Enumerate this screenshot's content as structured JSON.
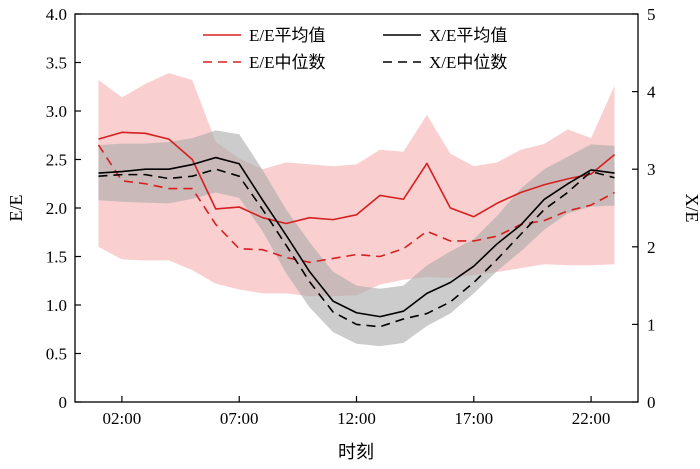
{
  "chart_data": {
    "type": "line",
    "title": "",
    "xlabel": "时刻",
    "ylabel_left": "E/E",
    "ylabel_right": "X/E",
    "x": [
      1,
      2,
      3,
      4,
      5,
      6,
      7,
      8,
      9,
      10,
      11,
      12,
      13,
      14,
      15,
      16,
      17,
      18,
      19,
      20,
      21,
      22,
      23
    ],
    "xticks": [
      2,
      7,
      12,
      17,
      22
    ],
    "xtick_labels": [
      "02:00",
      "07:00",
      "12:00",
      "17:00",
      "22:00"
    ],
    "xlim": [
      0,
      24
    ],
    "ylim_left": [
      0,
      4
    ],
    "yticks_left": [
      "0",
      "0.5",
      "1.0",
      "1.5",
      "2.0",
      "2.5",
      "3.0",
      "3.5",
      "4.0"
    ],
    "ylim_right": [
      0,
      5
    ],
    "yticks_right": [
      "0",
      "1",
      "2",
      "3",
      "4",
      "5"
    ],
    "legend_position": "top-center",
    "colors": {
      "ee": "#d62020",
      "ee_band": "#f6b5b5",
      "xe": "#000000",
      "xe_band": "#aaaaaa"
    },
    "series": [
      {
        "name": "E/E平均值",
        "axis": "left",
        "style": "solid",
        "color": "#d62020",
        "values": [
          2.71,
          2.78,
          2.77,
          2.71,
          2.5,
          1.99,
          2.01,
          1.9,
          1.84,
          1.9,
          1.88,
          1.93,
          2.13,
          2.09,
          2.46,
          2.0,
          1.91,
          2.05,
          2.16,
          2.24,
          2.3,
          2.35,
          2.55
        ]
      },
      {
        "name": "E/E中位数",
        "axis": "left",
        "style": "dashed",
        "color": "#d62020",
        "values": [
          2.65,
          2.28,
          2.25,
          2.2,
          2.2,
          1.83,
          1.58,
          1.57,
          1.49,
          1.44,
          1.48,
          1.52,
          1.5,
          1.58,
          1.76,
          1.66,
          1.66,
          1.71,
          1.83,
          1.87,
          1.97,
          2.03,
          2.16
        ]
      },
      {
        "name": "X/E平均值",
        "axis": "right",
        "style": "solid",
        "color": "#000000",
        "values": [
          2.95,
          2.97,
          3.0,
          3.0,
          3.06,
          3.15,
          3.07,
          2.6,
          2.15,
          1.68,
          1.3,
          1.15,
          1.1,
          1.17,
          1.4,
          1.54,
          1.75,
          2.04,
          2.28,
          2.61,
          2.81,
          2.99,
          2.95
        ]
      },
      {
        "name": "X/E中位数",
        "axis": "right",
        "style": "dashed",
        "color": "#000000",
        "values": [
          2.91,
          2.93,
          2.93,
          2.88,
          2.91,
          3.0,
          2.91,
          2.48,
          2.02,
          1.55,
          1.16,
          1.0,
          0.97,
          1.07,
          1.14,
          1.29,
          1.54,
          1.84,
          2.16,
          2.48,
          2.7,
          2.97,
          2.89
        ]
      }
    ],
    "bands": [
      {
        "of": "E/E",
        "axis": "left",
        "upper": [
          3.32,
          3.14,
          3.28,
          3.39,
          3.32,
          2.68,
          2.51,
          2.4,
          2.47,
          2.45,
          2.43,
          2.45,
          2.6,
          2.58,
          2.96,
          2.56,
          2.43,
          2.47,
          2.6,
          2.66,
          2.81,
          2.72,
          3.26
        ],
        "lower": [
          1.6,
          1.47,
          1.46,
          1.46,
          1.36,
          1.22,
          1.16,
          1.12,
          1.12,
          1.09,
          1.09,
          1.1,
          1.21,
          1.26,
          1.29,
          1.28,
          1.31,
          1.34,
          1.38,
          1.42,
          1.41,
          1.41,
          1.42
        ]
      },
      {
        "of": "X/E",
        "axis": "right",
        "upper": [
          3.31,
          3.33,
          3.33,
          3.35,
          3.4,
          3.5,
          3.45,
          2.99,
          2.48,
          2.06,
          1.68,
          1.5,
          1.46,
          1.5,
          1.76,
          1.94,
          2.1,
          2.4,
          2.75,
          3.0,
          3.16,
          3.32,
          3.3
        ],
        "lower": [
          2.6,
          2.58,
          2.57,
          2.56,
          2.62,
          2.7,
          2.63,
          2.2,
          1.66,
          1.22,
          0.9,
          0.75,
          0.72,
          0.76,
          0.98,
          1.14,
          1.4,
          1.69,
          1.94,
          2.22,
          2.43,
          2.52,
          2.53
        ]
      }
    ]
  }
}
